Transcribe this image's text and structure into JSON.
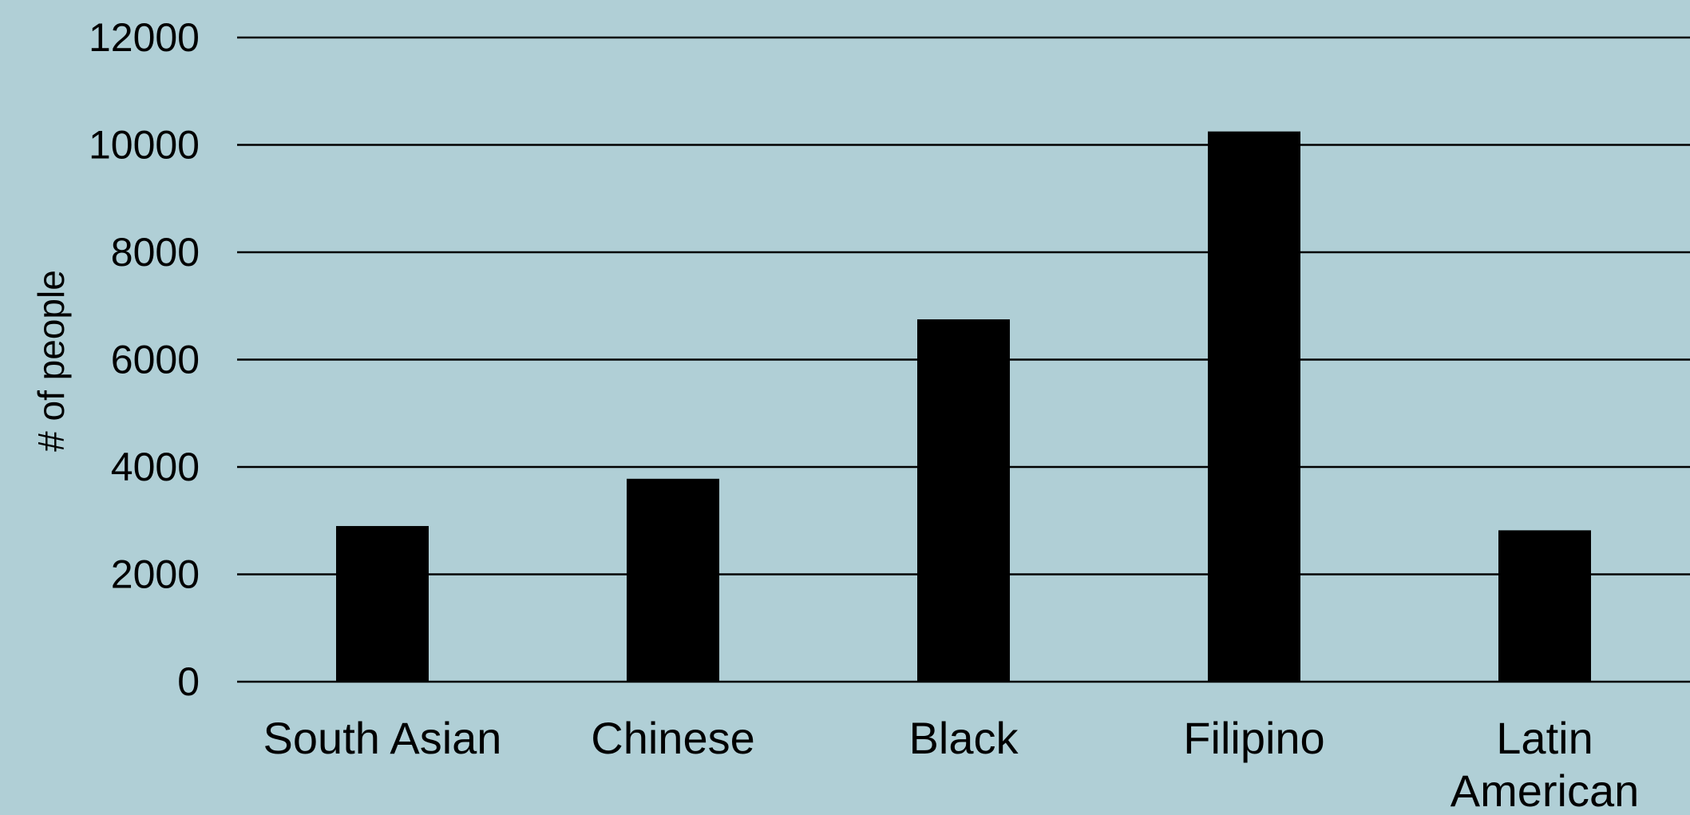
{
  "chart_data": {
    "type": "bar",
    "title": "",
    "xlabel": "",
    "ylabel": "# of people",
    "categories": [
      [
        "South Asian"
      ],
      [
        "Chinese"
      ],
      [
        "Black"
      ],
      [
        "Filipino"
      ],
      [
        "Latin",
        "American"
      ]
    ],
    "values": [
      2900,
      3780,
      6750,
      10250,
      2820
    ],
    "ylim": [
      0,
      12000
    ],
    "yticks": [
      "0",
      "2000",
      "4000",
      "6000",
      "8000",
      "10000",
      "12000"
    ],
    "grid": true,
    "legend": "none",
    "colors": {
      "background": "#b0cfd6",
      "bar": "#000000",
      "gridline": "#000000",
      "text": "#000000"
    }
  }
}
